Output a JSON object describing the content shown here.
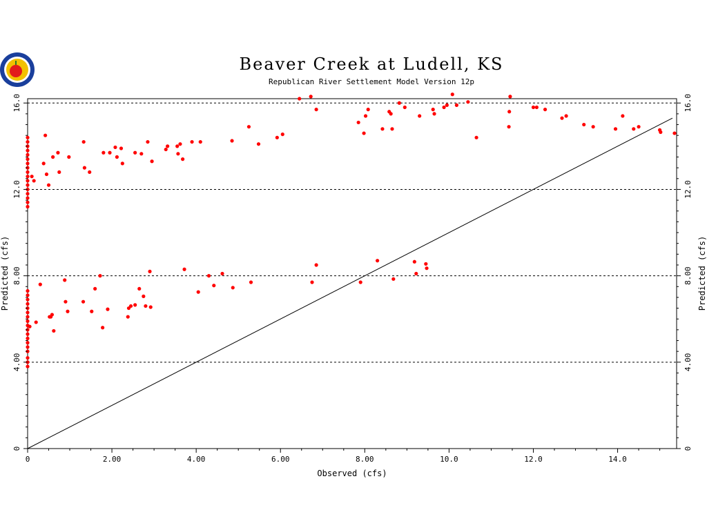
{
  "colors": {
    "points": "#ff0000",
    "line": "#000000",
    "background": "#ffffff",
    "logo_ring": "#1a3f9c",
    "logo_fill": "#f2c100"
  },
  "logo": {
    "icon": "apple-seal-logo"
  },
  "chart_data": {
    "type": "scatter",
    "title": "Beaver Creek at Ludell, KS",
    "subtitle": "Republican River Settlement Model Version 12p",
    "xlabel": "Observed (cfs)",
    "ylabel": "Predicted (cfs)",
    "xlim": [
      0,
      15.4
    ],
    "ylim": [
      0,
      16.2
    ],
    "x_ticks": [
      0,
      2,
      4,
      6,
      8,
      10,
      12,
      14
    ],
    "x_tick_labels": [
      "0",
      "2.00",
      "4.00",
      "6.00",
      "8.00",
      "10.0",
      "12.0",
      "14.0"
    ],
    "y_ticks": [
      0,
      4,
      8,
      12,
      16
    ],
    "y_tick_labels": [
      "0",
      "4.00",
      "8.00",
      "12.0",
      "16.0"
    ],
    "horizontal_gridlines": [
      4,
      8,
      12,
      16
    ],
    "reference_line": {
      "type": "1:1",
      "from": [
        0,
        0
      ],
      "to": [
        15.3,
        15.3
      ]
    },
    "points": [
      [
        0,
        14.4
      ],
      [
        0,
        14.2
      ],
      [
        0,
        14.0
      ],
      [
        0,
        13.8
      ],
      [
        0,
        13.6
      ],
      [
        0,
        13.4
      ],
      [
        0,
        13.2
      ],
      [
        0,
        13.0
      ],
      [
        0,
        12.8
      ],
      [
        0,
        12.6
      ],
      [
        0,
        12.4
      ],
      [
        0,
        12.2
      ],
      [
        0,
        12.0
      ],
      [
        0,
        11.8
      ],
      [
        0,
        11.6
      ],
      [
        0,
        11.4
      ],
      [
        0,
        11.2
      ],
      [
        0,
        7.3
      ],
      [
        0,
        7.1
      ],
      [
        0,
        6.9
      ],
      [
        0,
        6.7
      ],
      [
        0,
        6.5
      ],
      [
        0,
        6.3
      ],
      [
        0,
        6.1
      ],
      [
        0,
        5.9
      ],
      [
        0,
        5.7
      ],
      [
        0,
        5.5
      ],
      [
        0,
        5.3
      ],
      [
        0,
        5.1
      ],
      [
        0,
        4.9
      ],
      [
        0,
        4.7
      ],
      [
        0,
        4.5
      ],
      [
        0,
        4.2
      ],
      [
        0,
        4.0
      ],
      [
        0,
        3.8
      ],
      [
        0.05,
        5.65
      ],
      [
        0.1,
        12.6
      ],
      [
        0.15,
        12.4
      ],
      [
        0.2,
        5.85
      ],
      [
        0.3,
        7.6
      ],
      [
        0.38,
        13.2
      ],
      [
        0.42,
        14.5
      ],
      [
        0.45,
        12.7
      ],
      [
        0.5,
        12.2
      ],
      [
        0.52,
        6.1
      ],
      [
        0.55,
        6.1
      ],
      [
        0.58,
        6.2
      ],
      [
        0.6,
        13.5
      ],
      [
        0.62,
        5.45
      ],
      [
        0.72,
        13.7
      ],
      [
        0.75,
        12.8
      ],
      [
        0.88,
        7.8
      ],
      [
        0.9,
        6.8
      ],
      [
        0.95,
        6.35
      ],
      [
        0.98,
        13.5
      ],
      [
        1.32,
        6.8
      ],
      [
        1.33,
        14.2
      ],
      [
        1.35,
        13.0
      ],
      [
        1.47,
        12.8
      ],
      [
        1.52,
        6.35
      ],
      [
        1.6,
        7.4
      ],
      [
        1.72,
        8.0
      ],
      [
        1.8,
        13.7
      ],
      [
        1.78,
        5.6
      ],
      [
        1.9,
        6.45
      ],
      [
        1.95,
        13.7
      ],
      [
        2.08,
        13.95
      ],
      [
        2.12,
        13.5
      ],
      [
        2.22,
        13.9
      ],
      [
        2.25,
        13.2
      ],
      [
        2.38,
        6.1
      ],
      [
        2.4,
        6.5
      ],
      [
        2.45,
        6.6
      ],
      [
        2.55,
        6.65
      ],
      [
        2.55,
        13.7
      ],
      [
        2.65,
        7.4
      ],
      [
        2.7,
        13.65
      ],
      [
        2.75,
        7.05
      ],
      [
        2.8,
        6.6
      ],
      [
        2.85,
        14.2
      ],
      [
        2.9,
        8.2
      ],
      [
        2.92,
        6.55
      ],
      [
        2.95,
        13.3
      ],
      [
        3.28,
        13.85
      ],
      [
        3.32,
        14.0
      ],
      [
        3.55,
        14.0
      ],
      [
        3.57,
        13.65
      ],
      [
        3.62,
        14.1
      ],
      [
        3.68,
        13.4
      ],
      [
        3.72,
        8.3
      ],
      [
        3.9,
        14.2
      ],
      [
        4.05,
        7.25
      ],
      [
        4.1,
        14.2
      ],
      [
        4.3,
        8.0
      ],
      [
        4.42,
        7.55
      ],
      [
        4.62,
        8.1
      ],
      [
        4.85,
        14.25
      ],
      [
        4.87,
        7.45
      ],
      [
        5.25,
        14.9
      ],
      [
        5.3,
        7.7
      ],
      [
        5.48,
        14.1
      ],
      [
        5.92,
        14.4
      ],
      [
        6.05,
        14.55
      ],
      [
        6.45,
        16.2
      ],
      [
        6.72,
        16.3
      ],
      [
        6.75,
        7.7
      ],
      [
        6.85,
        15.7
      ],
      [
        6.85,
        8.5
      ],
      [
        7.85,
        15.1
      ],
      [
        7.9,
        7.7
      ],
      [
        7.98,
        14.6
      ],
      [
        8.02,
        15.4
      ],
      [
        8.08,
        15.7
      ],
      [
        8.3,
        8.7
      ],
      [
        8.42,
        14.8
      ],
      [
        8.58,
        15.6
      ],
      [
        8.62,
        15.5
      ],
      [
        8.65,
        14.8
      ],
      [
        8.68,
        7.85
      ],
      [
        8.82,
        16.0
      ],
      [
        8.95,
        15.8
      ],
      [
        9.18,
        8.65
      ],
      [
        9.22,
        8.1
      ],
      [
        9.3,
        15.4
      ],
      [
        9.45,
        8.55
      ],
      [
        9.47,
        8.35
      ],
      [
        9.62,
        15.7
      ],
      [
        9.65,
        15.5
      ],
      [
        9.88,
        15.8
      ],
      [
        9.95,
        15.9
      ],
      [
        10.08,
        16.4
      ],
      [
        10.18,
        15.9
      ],
      [
        10.45,
        16.05
      ],
      [
        10.65,
        14.4
      ],
      [
        11.42,
        14.9
      ],
      [
        11.43,
        15.6
      ],
      [
        11.45,
        16.3
      ],
      [
        12.0,
        15.8
      ],
      [
        12.08,
        15.8
      ],
      [
        12.28,
        15.7
      ],
      [
        12.68,
        15.3
      ],
      [
        12.78,
        15.4
      ],
      [
        13.2,
        15.0
      ],
      [
        13.42,
        14.9
      ],
      [
        13.95,
        14.8
      ],
      [
        14.12,
        15.4
      ],
      [
        14.38,
        14.8
      ],
      [
        14.5,
        14.9
      ],
      [
        15.0,
        14.75
      ],
      [
        15.02,
        14.65
      ],
      [
        15.35,
        14.6
      ]
    ]
  }
}
